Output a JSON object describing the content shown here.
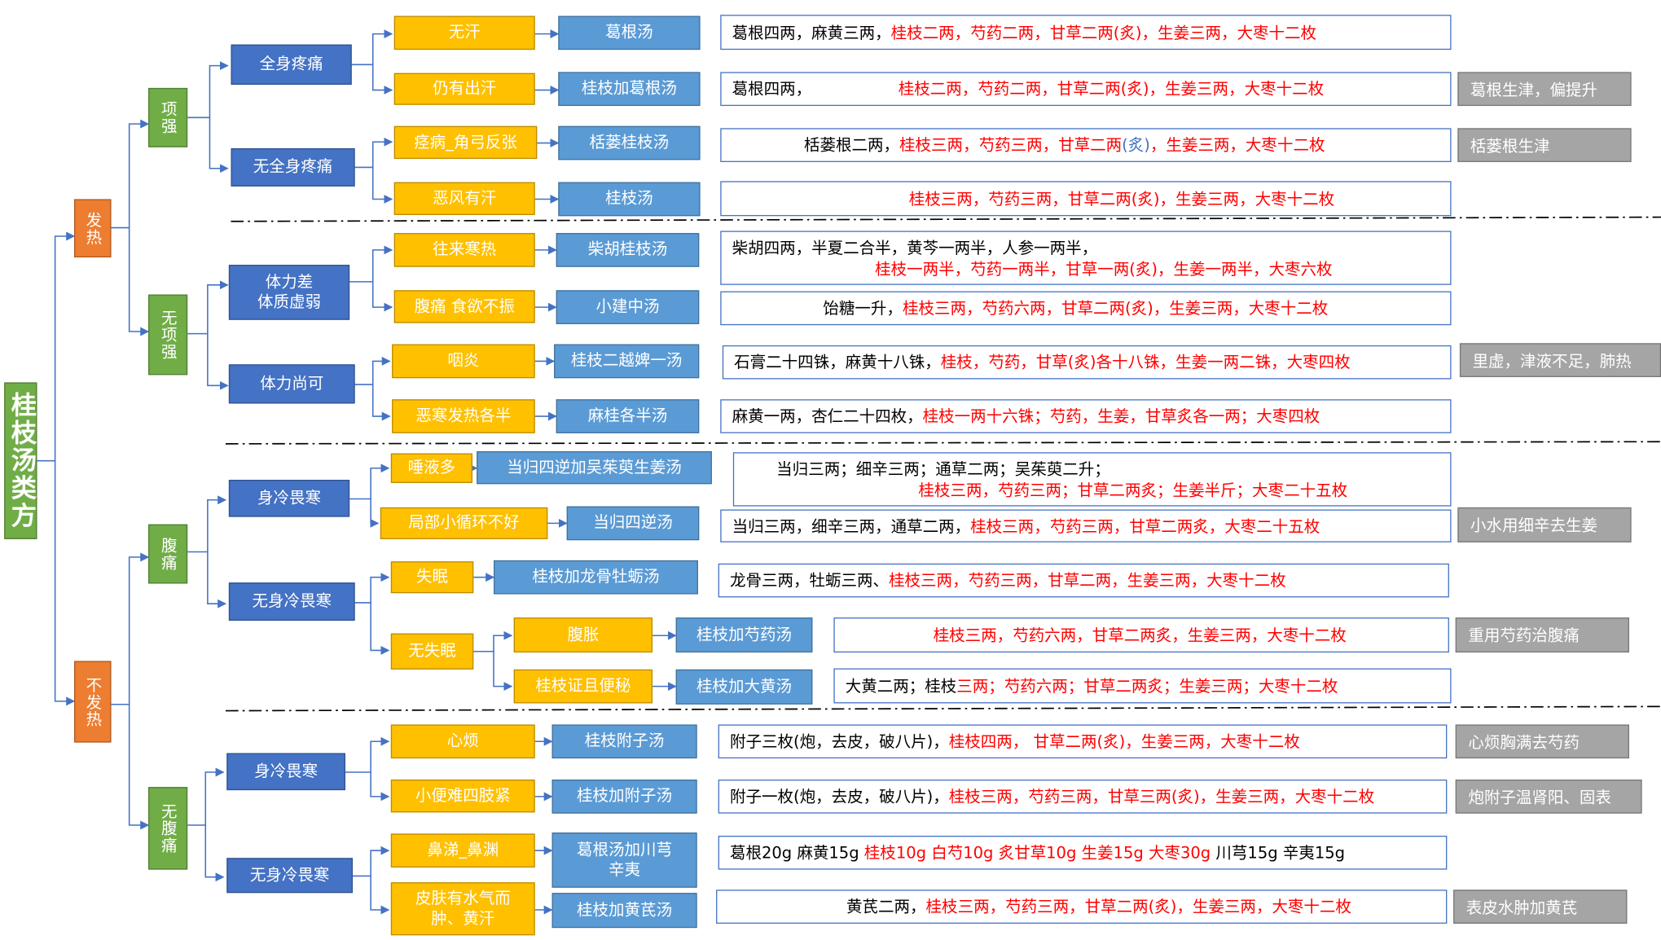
{
  "root": "桂枝汤类方",
  "level1": {
    "fever": "发热",
    "nofever": "不发热"
  },
  "level2": {
    "neck_stiff": "项强",
    "no_neck_stiff": "无项强",
    "abdominal_pain": "腹痛",
    "no_abdominal_pain": "无腹痛"
  },
  "level3": {
    "whole_body_pain": "全身疼痛",
    "no_whole_body_pain": "无全身疼痛",
    "weak_constitution_line1": "体力差",
    "weak_constitution_line2": "体质虚弱",
    "moderate_strength": "体力尚可",
    "cold_aversion_a": "身冷畏寒",
    "no_cold_aversion_a": "无身冷畏寒",
    "cold_aversion_b": "身冷畏寒",
    "no_cold_aversion_b": "无身冷畏寒"
  },
  "symptoms": {
    "no_sweat": "无汗",
    "still_sweating": "仍有出汗",
    "spasm": "痉病_角弓反张",
    "wind_aversion_sweat": "恶风有汗",
    "alternating_chills": "往来寒热",
    "abdominal_pain_poor_appetite": "腹痛 食欲不振",
    "pharyngitis": "咽炎",
    "chills_fever_half": "恶寒发热各半",
    "much_saliva": "唾液多",
    "poor_local_circulation": "局部小循环不好",
    "insomnia": "失眠",
    "no_insomnia": "无失眠",
    "bloating": "腹胀",
    "constipation": "桂枝证且便秘",
    "irritability": "心烦",
    "dysuria": "小便难四肢紧",
    "nasal_discharge": "鼻涕_鼻渊",
    "skin_edema_line1": "皮肤有水气而",
    "skin_edema_line2": "肿、黄汗"
  },
  "formulas": {
    "gegen": "葛根汤",
    "guizhi_gegen": "桂枝加葛根汤",
    "gualou_guizhi": "栝蒌桂枝汤",
    "guizhi": "桂枝汤",
    "chaihu_guizhi": "柴胡桂枝汤",
    "xiaojianzhong": "小建中汤",
    "guizhi_erbi": "桂枝二越婢一汤",
    "magui": "麻桂各半汤",
    "danggui_wuzhuyu": "当归四逆加吴茱萸生姜汤",
    "danggui_sini": "当归四逆汤",
    "longgu_muli": "桂枝加龙骨牡蛎汤",
    "shaoyao": "桂枝加芍药汤",
    "dahuang": "桂枝加大黄汤",
    "fuzi_guizhi": "桂枝附子汤",
    "guizhi_fuzi": "桂枝加附子汤",
    "gegen_chuanxiong_line1": "葛根汤加川芎",
    "gegen_chuanxiong_line2": "辛夷",
    "huangqi": "桂枝加黄芪汤"
  },
  "ingredients": {
    "gegen": {
      "black": "葛根四两，麻黄三两，",
      "red": "桂枝二两，芍药二两，甘草二两(炙)，生姜三两，大枣十二枚"
    },
    "guizhi_gegen": {
      "black": "葛根四两，",
      "red": "桂枝二两，芍药二两，甘草二两(炙)，生姜三两，大枣十二枚"
    },
    "gualou_guizhi": {
      "black": "栝蒌根二两，",
      "red": "桂枝三两，芍药三两，甘草二两",
      "blue": "(炙)",
      "red_tail": "，生姜三两，大枣十二枚"
    },
    "guizhi": {
      "red": "桂枝三两，芍药三两，甘草二两(炙)，生姜三两，大枣十二枚"
    },
    "chaihu_guizhi": {
      "black": "柴胡四两，半夏二合半，黄芩一两半，人参一两半，",
      "red": "桂枝一两半，芍药一两半，甘草一两(炙)，生姜一两半，大枣六枚"
    },
    "xiaojianzhong": {
      "black": "饴糖一升，",
      "red": "桂枝三两，芍药六两，甘草二两(炙)，生姜三两，大枣十二枚"
    },
    "guizhi_erbi": {
      "black": "石膏二十四铢，麻黄十八铢，",
      "red": "桂枝，芍药，甘草(炙)各十八铢，生姜一两二铢，大枣四枚"
    },
    "magui": {
      "black": "麻黄一两，杏仁二十四枚，",
      "red": "桂枝一两十六铢；芍药，生姜，甘草炙各一两；大枣四枚"
    },
    "danggui_wuzhuyu": {
      "black": "当归三两；细辛三两；通草二两；吴茱萸二升；",
      "red": "桂枝三两，芍药三两；甘草二两炙；生姜半斤；大枣二十五枚"
    },
    "danggui_sini": {
      "black": "当归三两，细辛三两，通草二两，",
      "red": "桂枝三两，芍药三两，甘草二两炙，大枣二十五枚"
    },
    "longgu_muli": {
      "black": "龙骨三两，牡蛎三两、",
      "red": "桂枝三两，芍药三两，甘草二两，生姜三两，大枣十二枚"
    },
    "shaoyao": {
      "red": "桂枝三两，芍药六两，甘草二两炙，生姜三两，大枣十二枚"
    },
    "dahuang": {
      "black": "大黄二两；桂枝",
      "red": "三两；芍药六两；甘草二两炙；生姜三两；大枣十二枚"
    },
    "fuzi_guizhi": {
      "black": "附子三枚(炮，去皮，破八片)，",
      "red": "桂枝四两， 甘草二两(炙)，生姜三两，大枣十二枚"
    },
    "guizhi_fuzi": {
      "black": "附子一枚(炮，去皮，破八片)，",
      "red": "桂枝三两，芍药三两，甘草三两(炙)，生姜三两，大枣十二枚"
    },
    "gegen_chuanxiong": {
      "black": "葛根20g 麻黄15g ",
      "red": "桂枝10g 白芍10g 炙甘草10g 生姜15g 大枣30g",
      "black_tail": " 川芎15g 辛夷15g"
    },
    "huangqi": {
      "black": "黄芪二两，",
      "red": "桂枝三两，芍药三两，甘草二两(炙)，生姜三两，大枣十二枚"
    }
  },
  "notes": {
    "guizhi_gegen": "葛根生津，偏提升",
    "gualou_guizhi": "栝蒌根生津",
    "guizhi_erbi": "里虚，津液不足，肺热",
    "danggui_sini": "小水用细辛去生姜",
    "shaoyao": "重用芍药治腹痛",
    "fuzi_guizhi": "心烦胸满去芍药",
    "guizhi_fuzi": "炮附子温肾阳、固表",
    "huangqi": "表皮水肿加黄芪"
  },
  "colors": {
    "green": "#70ad47",
    "orange": "#ed7d31",
    "blue": "#4472c4",
    "yellow": "#ffc000",
    "light_blue": "#5b9bd5",
    "gray": "#a5a5a5",
    "red_text": "#ff0000"
  }
}
